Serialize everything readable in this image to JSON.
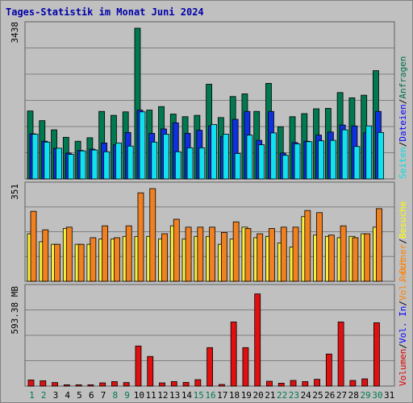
{
  "title": "Tages-Statistik im Monat Juni 2024",
  "panels": {
    "hits": {
      "max_label": "3438"
    },
    "visits": {
      "max_label": "351"
    },
    "volume": {
      "max_label": "593.38 MB"
    }
  },
  "right_axis": {
    "top": [
      {
        "text": "Tages-Statistik",
        "hidden": true
      }
    ]
  },
  "legend_top": [
    {
      "text": "Anfragen",
      "color": "#006e4c"
    },
    {
      "text": "Dateien",
      "color": "#0000ff"
    },
    {
      "text": "Seiten",
      "color": "#00e0e0"
    }
  ],
  "legend_mid": [
    {
      "text": "Besuche",
      "color": "#ffff00"
    },
    {
      "text": "Rechner",
      "color": "#ff8000"
    }
  ],
  "legend_bot": [
    {
      "text": "Volumen",
      "color": "#e00000"
    },
    {
      "text": "Vol. In",
      "color": "#0000ff"
    },
    {
      "text": "Vol. Out",
      "color": "#ff8000"
    }
  ],
  "separator": "/",
  "colors": {
    "hits": "#007850",
    "files": "#1030e0",
    "pages": "#10e0f0",
    "visits": "#f8f040",
    "sites": "#f08020",
    "volume": "#e01010",
    "day_normal": "#000000",
    "day_weekend": "#007850"
  },
  "chart_data": {
    "type": "bar",
    "title": "Tages-Statistik im Monat Juni 2024",
    "x": [
      "1",
      "2",
      "3",
      "4",
      "5",
      "6",
      "7",
      "8",
      "9",
      "10",
      "11",
      "12",
      "13",
      "14",
      "15",
      "16",
      "17",
      "18",
      "19",
      "20",
      "21",
      "22",
      "23",
      "24",
      "25",
      "26",
      "27",
      "28",
      "29",
      "30",
      "31"
    ],
    "weekend_days": [
      1,
      2,
      8,
      9,
      15,
      16,
      22,
      23,
      29,
      30
    ],
    "hits_max": 3438,
    "visits_max": 351,
    "volume_max_mb": 593.38,
    "series": [
      {
        "name": "Anfragen",
        "values": [
          1550,
          1330,
          1120,
          950,
          860,
          940,
          1540,
          1450,
          1530,
          3438,
          1570,
          1650,
          1480,
          1420,
          1450,
          2160,
          1400,
          1880,
          1940,
          1540,
          2180,
          1190,
          1420,
          1490,
          1600,
          1610,
          1970,
          1850,
          1910,
          2470,
          0
        ]
      },
      {
        "name": "Dateien",
        "values": [
          1030,
          860,
          700,
          590,
          650,
          680,
          820,
          780,
          1060,
          1570,
          1040,
          1140,
          1280,
          1040,
          1110,
          1210,
          970,
          1360,
          1540,
          880,
          1540,
          590,
          830,
          860,
          1000,
          1070,
          1230,
          1210,
          1050,
          1540,
          0
        ]
      },
      {
        "name": "Seiten",
        "values": [
          1020,
          840,
          700,
          560,
          640,
          660,
          620,
          820,
          750,
          1530,
          840,
          1020,
          620,
          710,
          710,
          1240,
          1020,
          580,
          1000,
          780,
          1050,
          540,
          800,
          850,
          870,
          880,
          1120,
          740,
          1210,
          1060,
          0
        ]
      },
      {
        "name": "Besuche",
        "values": [
          180,
          150,
          140,
          200,
          140,
          140,
          160,
          160,
          170,
          170,
          170,
          160,
          210,
          160,
          170,
          170,
          140,
          160,
          205,
          165,
          170,
          145,
          130,
          245,
          175,
          170,
          165,
          170,
          180,
          205,
          0
        ]
      },
      {
        "name": "Rechner",
        "values": [
          265,
          195,
          140,
          205,
          140,
          165,
          210,
          165,
          210,
          335,
          351,
          180,
          235,
          205,
          205,
          205,
          185,
          225,
          200,
          180,
          200,
          205,
          205,
          268,
          260,
          175,
          210,
          165,
          180,
          275,
          0
        ]
      },
      {
        "name": "Volumen",
        "values": [
          38,
          33,
          22,
          8,
          8,
          8,
          20,
          28,
          22,
          250,
          185,
          20,
          28,
          23,
          40,
          240,
          10,
          400,
          240,
          575,
          30,
          18,
          35,
          28,
          42,
          200,
          400,
          35,
          45,
          395,
          0
        ]
      }
    ]
  }
}
